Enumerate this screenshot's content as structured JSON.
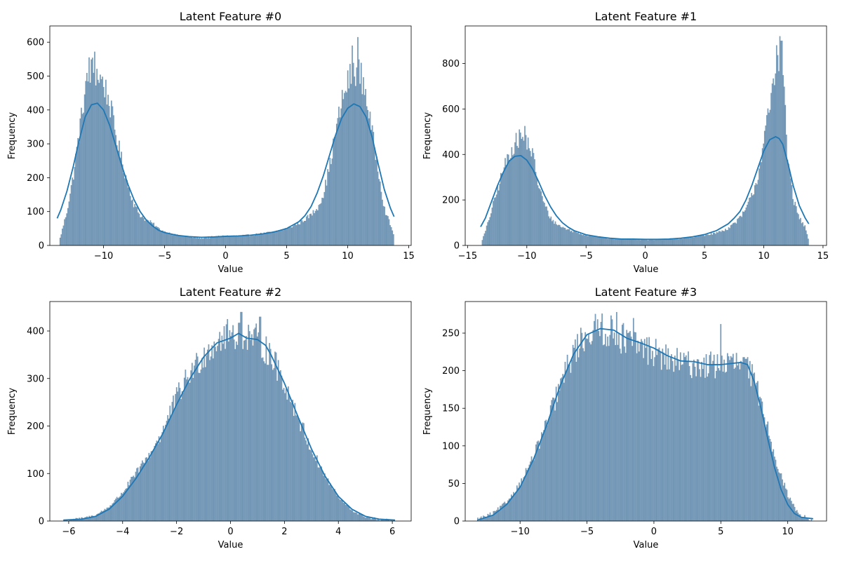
{
  "figure": {
    "bar_color": "#4c7ca4",
    "bar_edge_color": "#2d5a80",
    "kde_color": "#1f77b4"
  },
  "chart_data": [
    {
      "type": "histogram",
      "title": "Latent Feature #0",
      "xlabel": "Value",
      "ylabel": "Frequency",
      "xlim": [
        -14.4,
        15.2
      ],
      "ylim": [
        0,
        648
      ],
      "xticks": [
        -10,
        -5,
        0,
        5,
        10,
        15
      ],
      "xtick_labels": [
        "−10",
        "−5",
        "0",
        "5",
        "10",
        "15"
      ],
      "yticks": [
        0,
        100,
        200,
        300,
        400,
        500,
        600
      ],
      "data_range": [
        -13.6,
        13.8
      ],
      "bin_count": 300,
      "density_shape": {
        "x": [
          -13.6,
          -13.0,
          -12.5,
          -12.0,
          -11.5,
          -11.0,
          -10.5,
          -10.0,
          -9.5,
          -9.0,
          -8.5,
          -8.0,
          -7.5,
          -7.0,
          -6.5,
          -6.0,
          -5.5,
          -5.0,
          -4.0,
          -3.0,
          -2.0,
          -1.0,
          0.0,
          1.0,
          2.0,
          3.0,
          4.0,
          5.0,
          6.0,
          7.0,
          7.5,
          8.0,
          8.5,
          9.0,
          9.5,
          10.0,
          10.5,
          11.0,
          11.5,
          12.0,
          12.5,
          13.0,
          13.8
        ],
        "y": [
          15,
          100,
          200,
          330,
          460,
          520,
          505,
          480,
          420,
          330,
          250,
          180,
          120,
          90,
          75,
          65,
          50,
          40,
          30,
          25,
          22,
          25,
          28,
          28,
          30,
          35,
          40,
          50,
          65,
          90,
          110,
          150,
          230,
          330,
          420,
          480,
          520,
          510,
          450,
          330,
          230,
          110,
          30
        ]
      },
      "peak_spikes": [
        {
          "x": -10.7,
          "y": 572
        },
        {
          "x": -11.2,
          "y": 555
        },
        {
          "x": 10.8,
          "y": 615
        },
        {
          "x": 10.4,
          "y": 590
        }
      ],
      "kde": {
        "x": [
          -13.8,
          -13.5,
          -13.0,
          -12.5,
          -12.0,
          -11.5,
          -11.0,
          -10.5,
          -10.0,
          -9.5,
          -9.0,
          -8.5,
          -8.0,
          -7.5,
          -7.0,
          -6.5,
          -6.0,
          -5.5,
          -5.0,
          -4.0,
          -3.0,
          -2.0,
          -1.0,
          0.0,
          1.0,
          2.0,
          3.0,
          4.0,
          5.0,
          6.0,
          6.5,
          7.0,
          7.5,
          8.0,
          8.5,
          9.0,
          9.5,
          10.0,
          10.5,
          11.0,
          11.5,
          12.0,
          12.5,
          13.0,
          13.5,
          13.8
        ],
        "y": [
          80,
          105,
          160,
          230,
          310,
          380,
          415,
          420,
          400,
          355,
          295,
          235,
          180,
          135,
          100,
          75,
          58,
          45,
          38,
          30,
          26,
          24,
          25,
          27,
          28,
          30,
          34,
          40,
          50,
          70,
          88,
          115,
          155,
          205,
          265,
          325,
          375,
          405,
          418,
          410,
          380,
          320,
          240,
          165,
          110,
          85
        ]
      }
    },
    {
      "type": "histogram",
      "title": "Latent Feature #1",
      "xlabel": "Value",
      "ylabel": "Frequency",
      "xlim": [
        -15.2,
        15.3
      ],
      "ylim": [
        0,
        965
      ],
      "xticks": [
        -15,
        -10,
        -5,
        0,
        5,
        10,
        15
      ],
      "xtick_labels": [
        "−15",
        "−10",
        "−5",
        "0",
        "5",
        "10",
        "15"
      ],
      "yticks": [
        0,
        200,
        400,
        600,
        800
      ],
      "data_range": [
        -13.8,
        13.8
      ],
      "bin_count": 300,
      "density_shape": {
        "x": [
          -13.8,
          -13.5,
          -13.0,
          -12.5,
          -12.0,
          -11.5,
          -11.0,
          -10.5,
          -10.0,
          -9.5,
          -9.0,
          -8.5,
          -8.0,
          -7.5,
          -7.0,
          -6.0,
          -5.0,
          -4.0,
          -3.0,
          -2.0,
          -1.0,
          0.0,
          1.0,
          2.0,
          3.0,
          4.0,
          5.0,
          6.0,
          7.0,
          8.0,
          8.5,
          9.0,
          9.5,
          10.0,
          10.5,
          11.0,
          11.3,
          11.6,
          12.0,
          12.5,
          13.0,
          13.5,
          13.8
        ],
        "y": [
          20,
          60,
          150,
          240,
          330,
          400,
          450,
          470,
          460,
          400,
          260,
          180,
          120,
          95,
          80,
          60,
          45,
          38,
          30,
          28,
          28,
          25,
          25,
          28,
          30,
          35,
          45,
          55,
          75,
          120,
          160,
          220,
          300,
          460,
          600,
          760,
          850,
          780,
          400,
          200,
          120,
          80,
          20
        ]
      },
      "peak_spikes": [
        {
          "x": -10.2,
          "y": 525
        },
        {
          "x": -10.6,
          "y": 510
        },
        {
          "x": 11.35,
          "y": 920
        },
        {
          "x": 11.5,
          "y": 900
        },
        {
          "x": 11.1,
          "y": 880
        }
      ],
      "kde": {
        "x": [
          -13.9,
          -13.5,
          -13.0,
          -12.5,
          -12.0,
          -11.5,
          -11.0,
          -10.5,
          -10.0,
          -9.5,
          -9.0,
          -8.5,
          -8.0,
          -7.5,
          -7.0,
          -6.5,
          -6.0,
          -5.0,
          -4.0,
          -3.0,
          -2.0,
          -1.0,
          0.0,
          1.0,
          2.0,
          3.0,
          4.0,
          5.0,
          6.0,
          7.0,
          7.5,
          8.0,
          8.5,
          9.0,
          9.5,
          10.0,
          10.5,
          11.0,
          11.3,
          11.6,
          12.0,
          12.5,
          13.0,
          13.5,
          13.8
        ],
        "y": [
          82,
          120,
          190,
          260,
          320,
          370,
          392,
          395,
          375,
          335,
          280,
          220,
          170,
          130,
          100,
          80,
          65,
          47,
          38,
          32,
          28,
          28,
          27,
          27,
          28,
          32,
          38,
          48,
          65,
          95,
          120,
          150,
          200,
          265,
          340,
          415,
          465,
          478,
          470,
          445,
          370,
          260,
          175,
          120,
          95
        ]
      }
    },
    {
      "type": "histogram",
      "title": "Latent Feature #2",
      "xlabel": "Value",
      "ylabel": "Frequency",
      "xlim": [
        -6.7,
        6.7
      ],
      "ylim": [
        0,
        462
      ],
      "xticks": [
        -6,
        -4,
        -2,
        0,
        2,
        4,
        6
      ],
      "xtick_labels": [
        "−6",
        "−4",
        "−2",
        "0",
        "2",
        "4",
        "6"
      ],
      "yticks": [
        0,
        100,
        200,
        300,
        400
      ],
      "data_range": [
        -6.2,
        6.1
      ],
      "bin_count": 300,
      "density_shape": {
        "x": [
          -6.2,
          -5.5,
          -5.0,
          -4.5,
          -4.0,
          -3.5,
          -3.0,
          -2.5,
          -2.0,
          -1.5,
          -1.0,
          -0.5,
          0.0,
          0.5,
          1.0,
          1.5,
          2.0,
          2.5,
          3.0,
          3.5,
          4.0,
          4.5,
          5.0,
          5.5,
          6.1
        ],
        "y": [
          1,
          5,
          12,
          30,
          60,
          100,
          140,
          190,
          260,
          310,
          350,
          380,
          395,
          395,
          380,
          350,
          290,
          220,
          150,
          95,
          50,
          22,
          9,
          3,
          1
        ]
      },
      "peak_spikes": [
        {
          "x": 0.4,
          "y": 440
        },
        {
          "x": 1.1,
          "y": 430
        },
        {
          "x": -0.1,
          "y": 425
        }
      ],
      "kde": {
        "x": [
          -6.2,
          -5.5,
          -5.0,
          -4.5,
          -4.0,
          -3.5,
          -3.0,
          -2.5,
          -2.0,
          -1.5,
          -1.0,
          -0.5,
          0.0,
          0.3,
          0.6,
          1.0,
          1.3,
          1.5,
          2.0,
          2.5,
          3.0,
          3.5,
          4.0,
          4.5,
          5.0,
          5.5,
          6.1
        ],
        "y": [
          2,
          4,
          10,
          25,
          52,
          90,
          135,
          185,
          245,
          300,
          345,
          375,
          385,
          395,
          385,
          382,
          370,
          350,
          290,
          220,
          152,
          95,
          52,
          25,
          10,
          4,
          2
        ]
      }
    },
    {
      "type": "histogram",
      "title": "Latent Feature #3",
      "xlabel": "Value",
      "ylabel": "Frequency",
      "xlim": [
        -14.1,
        12.9
      ],
      "ylim": [
        0,
        292
      ],
      "xticks": [
        -10,
        -5,
        0,
        5,
        10
      ],
      "xtick_labels": [
        "−10",
        "−5",
        "0",
        "5",
        "10"
      ],
      "yticks": [
        0,
        50,
        100,
        150,
        200,
        250
      ],
      "data_range": [
        -13.2,
        11.9
      ],
      "bin_count": 300,
      "density_shape": {
        "x": [
          -13.2,
          -12.0,
          -11.0,
          -10.0,
          -9.0,
          -8.0,
          -7.0,
          -6.0,
          -5.0,
          -4.0,
          -3.0,
          -2.0,
          -1.0,
          0.0,
          1.0,
          2.0,
          3.0,
          4.0,
          5.0,
          6.0,
          7.0,
          7.5,
          8.0,
          8.5,
          9.0,
          9.5,
          10.0,
          10.5,
          11.0,
          11.5,
          11.9
        ],
        "y": [
          2,
          10,
          25,
          50,
          85,
          130,
          180,
          225,
          250,
          255,
          250,
          240,
          232,
          225,
          215,
          210,
          208,
          207,
          208,
          210,
          205,
          185,
          160,
          125,
          90,
          60,
          35,
          18,
          8,
          3,
          1
        ]
      },
      "peak_spikes": [
        {
          "x": -2.8,
          "y": 278
        },
        {
          "x": -3.9,
          "y": 276
        },
        {
          "x": 5.0,
          "y": 262
        },
        {
          "x": -1.5,
          "y": 270
        }
      ],
      "kde": {
        "x": [
          -13.2,
          -12.0,
          -11.0,
          -10.0,
          -9.0,
          -8.0,
          -7.0,
          -6.0,
          -5.0,
          -4.0,
          -3.0,
          -2.0,
          -1.0,
          0.0,
          1.0,
          2.0,
          3.0,
          4.0,
          5.0,
          6.0,
          6.5,
          7.0,
          7.5,
          8.0,
          8.5,
          9.0,
          9.5,
          10.0,
          10.5,
          11.0,
          11.9
        ],
        "y": [
          1,
          8,
          22,
          45,
          82,
          128,
          180,
          222,
          248,
          256,
          254,
          243,
          237,
          230,
          220,
          213,
          212,
          208,
          208,
          210,
          211,
          208,
          185,
          150,
          110,
          72,
          42,
          22,
          10,
          5,
          3
        ]
      }
    }
  ]
}
